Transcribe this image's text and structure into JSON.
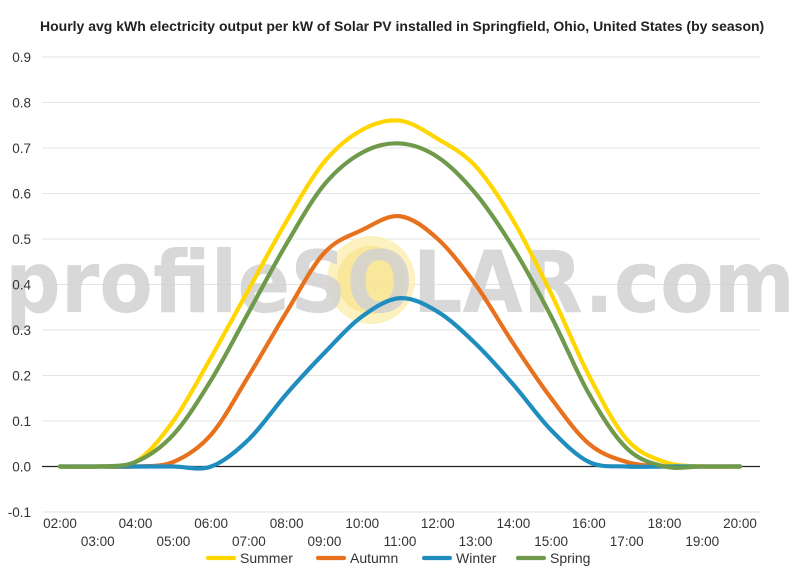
{
  "chart_data": {
    "type": "line",
    "title": "Hourly avg kWh electricity output per kW of Solar PV installed in Springfield, Ohio, United States (by season)",
    "x": [
      "02:00",
      "03:00",
      "04:00",
      "05:00",
      "06:00",
      "07:00",
      "08:00",
      "09:00",
      "10:00",
      "11:00",
      "12:00",
      "13:00",
      "14:00",
      "15:00",
      "16:00",
      "17:00",
      "18:00",
      "19:00",
      "20:00"
    ],
    "ylim": [
      -0.1,
      0.9
    ],
    "yticks": [
      "0.9",
      "0.8",
      "0.7",
      "0.6",
      "0.5",
      "0.4",
      "0.3",
      "0.2",
      "0.1",
      "0.0",
      "-0.1"
    ],
    "yticks_values": [
      0.9,
      0.8,
      0.7,
      0.6,
      0.5,
      0.4,
      0.3,
      0.2,
      0.1,
      0.0,
      -0.1
    ],
    "grid": true,
    "legend_position": "bottom",
    "series": [
      {
        "name": "Summer",
        "color": "#ffd600",
        "values": [
          0.0,
          0.0,
          0.01,
          0.1,
          0.24,
          0.39,
          0.54,
          0.67,
          0.74,
          0.76,
          0.72,
          0.66,
          0.54,
          0.38,
          0.2,
          0.06,
          0.01,
          0.0,
          0.0
        ]
      },
      {
        "name": "Autumn",
        "color": "#e8711e",
        "values": [
          0.0,
          0.0,
          0.0,
          0.01,
          0.07,
          0.2,
          0.34,
          0.47,
          0.52,
          0.55,
          0.5,
          0.4,
          0.27,
          0.15,
          0.05,
          0.01,
          0.0,
          0.0,
          0.0
        ]
      },
      {
        "name": "Winter",
        "color": "#1f8ebf",
        "values": [
          0.0,
          0.0,
          0.0,
          0.0,
          0.0,
          0.06,
          0.16,
          0.25,
          0.33,
          0.37,
          0.34,
          0.27,
          0.18,
          0.08,
          0.01,
          0.0,
          0.0,
          0.0,
          0.0
        ]
      },
      {
        "name": "Spring",
        "color": "#6f9a4c",
        "values": [
          0.0,
          0.0,
          0.01,
          0.07,
          0.19,
          0.34,
          0.49,
          0.62,
          0.69,
          0.71,
          0.68,
          0.6,
          0.48,
          0.33,
          0.16,
          0.04,
          0.0,
          0.0,
          0.0
        ]
      }
    ],
    "watermark": "profileSOLAR.com"
  }
}
